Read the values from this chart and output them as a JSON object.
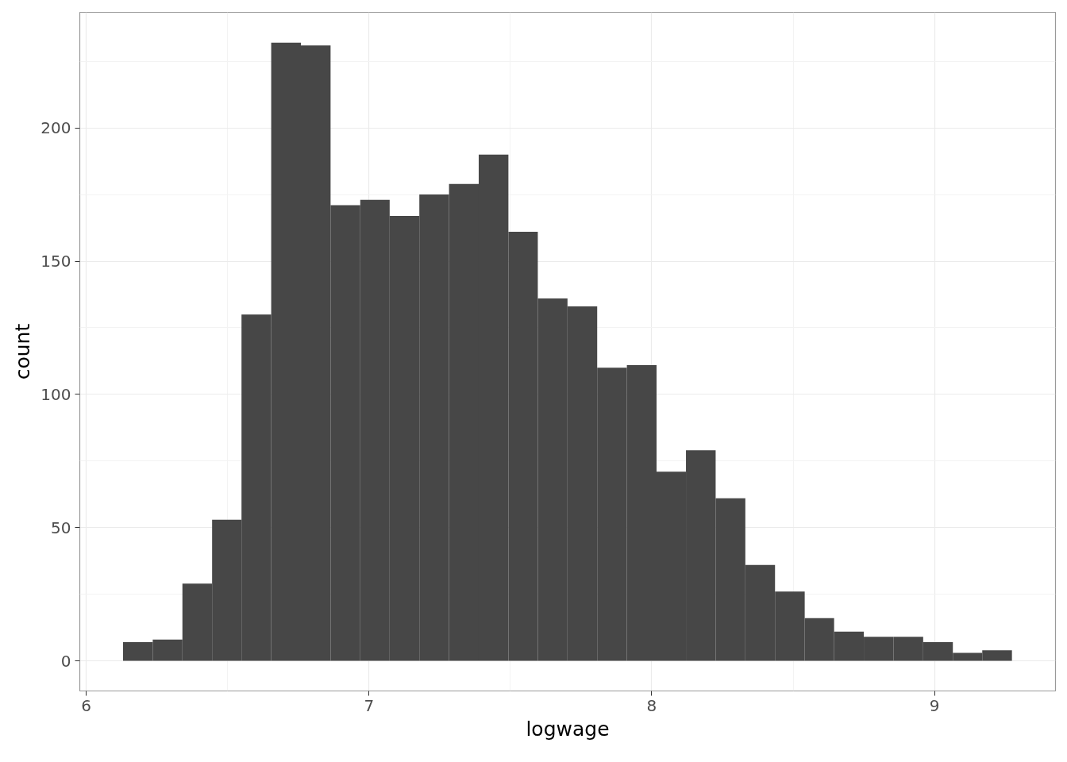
{
  "chart_data": {
    "type": "histogram",
    "xlabel": "logwage",
    "ylabel": "count",
    "bins": [
      6.13,
      6.235,
      6.34,
      6.445,
      6.549,
      6.654,
      6.759,
      6.864,
      6.969,
      7.073,
      7.178,
      7.283,
      7.388,
      7.493,
      7.597,
      7.702,
      7.807,
      7.912,
      8.017,
      8.121,
      8.226,
      8.331,
      8.436,
      8.541,
      8.645,
      8.75,
      8.855,
      8.96,
      9.065,
      9.169,
      9.274
    ],
    "values": [
      7,
      8,
      29,
      53,
      130,
      232,
      231,
      171,
      173,
      167,
      175,
      179,
      190,
      161,
      136,
      133,
      110,
      111,
      71,
      79,
      61,
      36,
      26,
      16,
      11,
      9,
      9,
      7,
      3,
      4
    ],
    "color": "#474747",
    "xlim": [
      5.977,
      9.428
    ],
    "ylim": [
      -11.3,
      243.4
    ],
    "xticks": [
      6,
      7,
      8,
      9
    ],
    "yticks": [
      0,
      50,
      100,
      150,
      200
    ],
    "grid": true
  }
}
